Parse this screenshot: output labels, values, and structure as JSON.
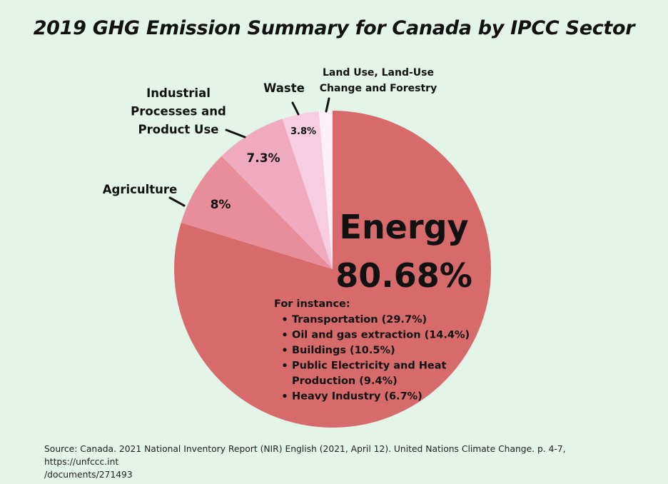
{
  "title": "2019 GHG Emission Summary for Canada by IPCC Sector",
  "source": {
    "line1": "Source: Canada. 2021 National Inventory Report (NIR) English (2021, April 12). United Nations Climate Change. p. 4-7, https://unfccc.int",
    "line2": "/documents/271493"
  },
  "chart_data": {
    "type": "pie",
    "title": "2019 GHG Emission Summary for Canada by IPCC Sector",
    "slices": [
      {
        "name": "Energy",
        "value": 80.68,
        "label": "80.68%",
        "color": "#d76b6b"
      },
      {
        "name": "Agriculture",
        "value": 8,
        "label": "8%",
        "color": "#e88e9a"
      },
      {
        "name": "Industrial Processes and Product Use",
        "name_lines": [
          "Industrial",
          "Processes and",
          "Product Use"
        ],
        "value": 7.3,
        "label": "7.3%",
        "color": "#efaac0"
      },
      {
        "name": "Waste",
        "value": 3.8,
        "label": "3.8%",
        "color": "#f6cde1"
      },
      {
        "name": "Land Use, Land-Use Change and Forestry",
        "name_lines": [
          "Land Use, Land-Use",
          "Change and Forestry"
        ],
        "value": 1.4,
        "label": "",
        "color": "#fdf0f8"
      }
    ],
    "energy_note": {
      "heading": "For instance:",
      "items": [
        [
          "Transportation (29.7%)"
        ],
        [
          "Oil and gas extraction (14.4%)"
        ],
        [
          "Buildings (10.5%)"
        ],
        [
          "Public Electricity and Heat",
          "Production (9.4%)"
        ],
        [
          "Heavy Industry (6.7%)"
        ]
      ]
    }
  }
}
